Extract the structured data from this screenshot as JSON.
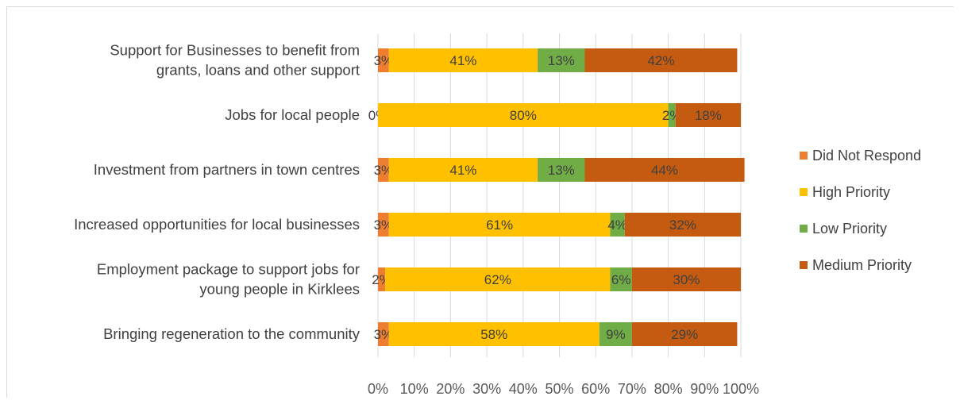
{
  "chart_data": {
    "type": "bar",
    "orientation": "horizontal",
    "stacked": "percent",
    "categories": [
      [
        "Support for Businesses to benefit from",
        "grants, loans and other support"
      ],
      [
        "Jobs for local people"
      ],
      [
        "Investment from partners in town centres"
      ],
      [
        "Increased opportunities for local businesses"
      ],
      [
        "Employment package to support jobs for",
        "young people in Kirklees"
      ],
      [
        "Bringing regeneration to the community"
      ]
    ],
    "series": [
      {
        "name": "Did Not Respond",
        "color": "#ed7d31",
        "values": [
          3,
          0,
          3,
          3,
          2,
          3
        ]
      },
      {
        "name": "High Priority",
        "color": "#ffc000",
        "values": [
          41,
          80,
          41,
          61,
          62,
          58
        ]
      },
      {
        "name": "Low Priority",
        "color": "#70ad47",
        "values": [
          13,
          2,
          13,
          4,
          6,
          9
        ]
      },
      {
        "name": "Medium Priority",
        "color": "#c55a11",
        "values": [
          42,
          18,
          44,
          32,
          30,
          29
        ]
      }
    ],
    "x_ticks": [
      "0%",
      "10%",
      "20%",
      "30%",
      "40%",
      "50%",
      "60%",
      "70%",
      "80%",
      "90%",
      "100%"
    ],
    "xlim": [
      0,
      100
    ],
    "grid": true,
    "legend_position": "right",
    "data_label_color": "#404040",
    "grid_color": "#d9d9d9"
  }
}
